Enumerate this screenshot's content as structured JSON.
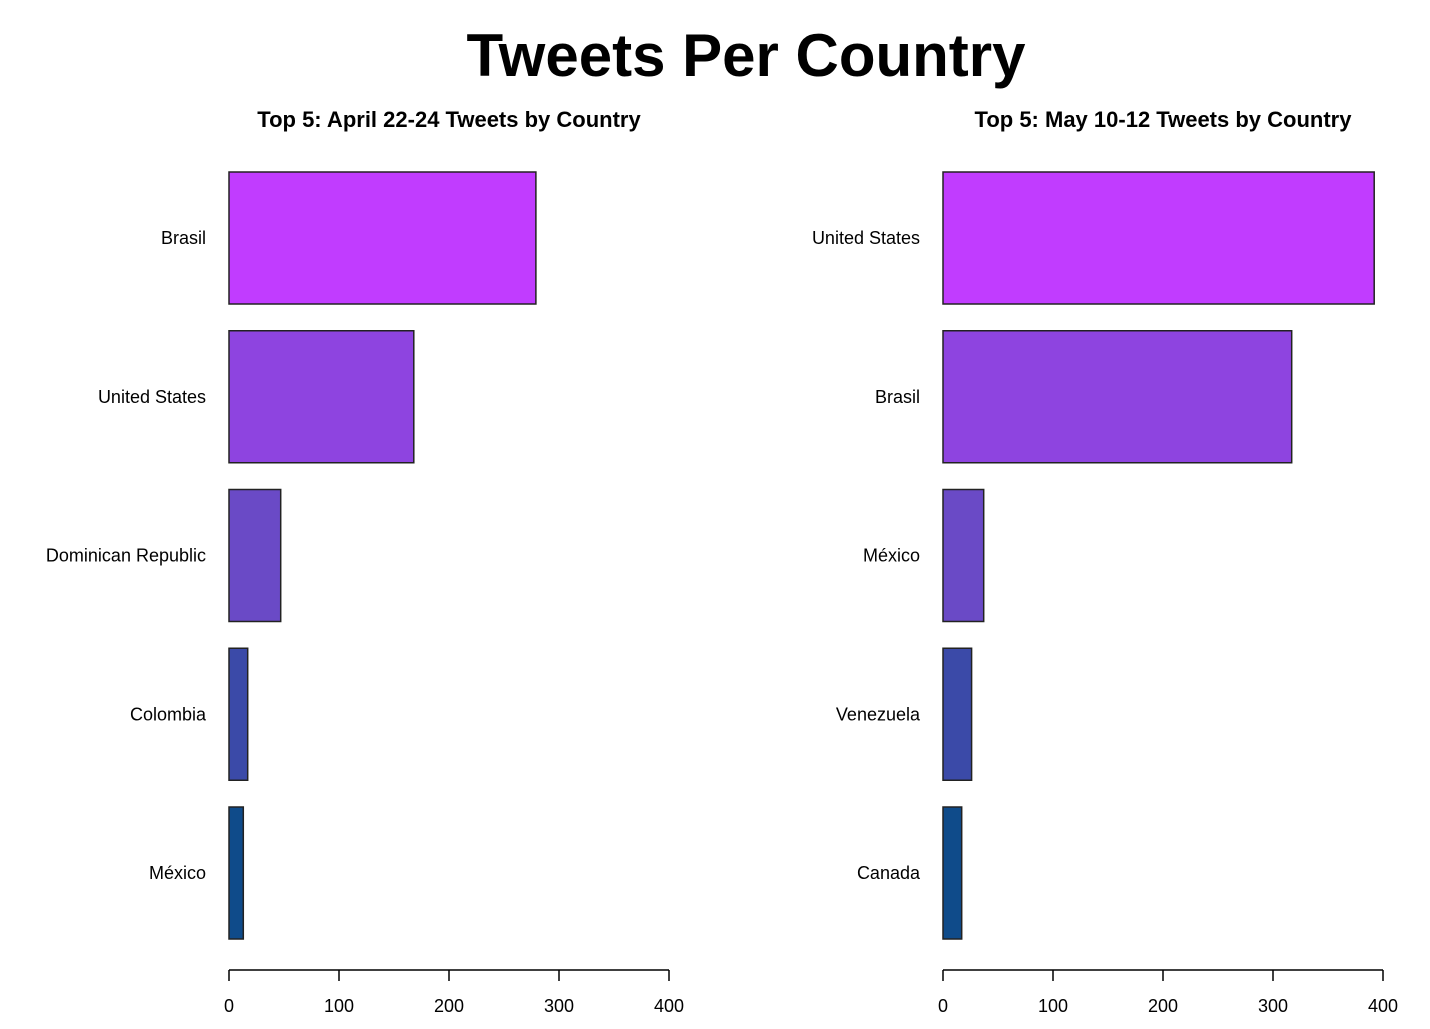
{
  "title": "Tweets Per Country",
  "colors": [
    "#c13cff",
    "#8e44e0",
    "#6a4ac6",
    "#3b4aa8",
    "#0f4b8a"
  ],
  "chart_data": [
    {
      "type": "bar",
      "orientation": "horizontal",
      "title": "Top 5: April 22-24 Tweets by Country",
      "categories": [
        "Brasil",
        "United States",
        "Dominican Republic",
        "Colombia",
        "México"
      ],
      "values": [
        279,
        168,
        47,
        17,
        13
      ],
      "xlim": [
        0,
        400
      ],
      "xticks": [
        "0",
        "100",
        "200",
        "300",
        "400"
      ],
      "grid": false
    },
    {
      "type": "bar",
      "orientation": "horizontal",
      "title": "Top 5: May 10-12 Tweets by Country",
      "categories": [
        "United States",
        "Brasil",
        "México",
        "Venezuela",
        "Canada"
      ],
      "values": [
        392,
        317,
        37,
        26,
        17
      ],
      "xlim": [
        0,
        400
      ],
      "xticks": [
        "0",
        "100",
        "200",
        "300",
        "400"
      ],
      "grid": false
    }
  ]
}
